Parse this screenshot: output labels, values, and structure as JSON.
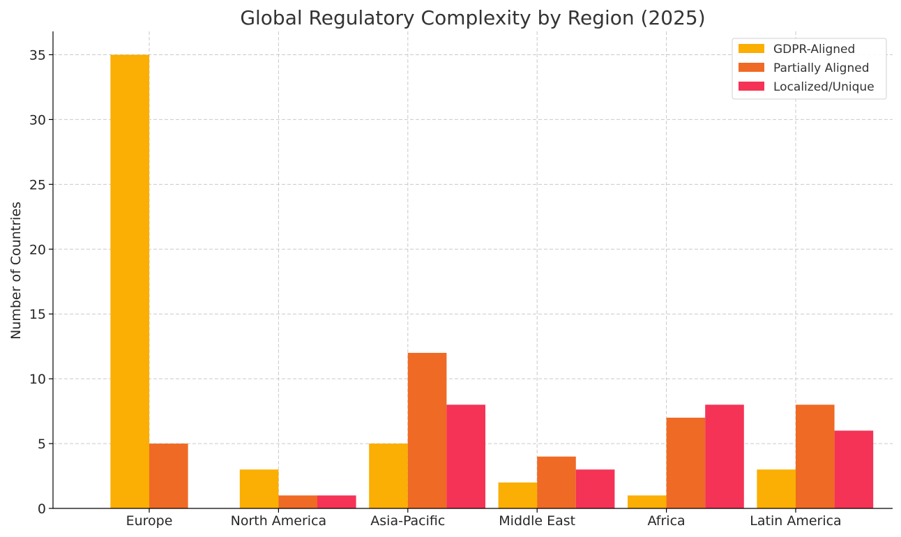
{
  "chart_data": {
    "type": "bar",
    "title": "Global Regulatory Complexity by Region (2025)",
    "xlabel": "",
    "ylabel": "Number of Countries",
    "categories": [
      "Europe",
      "North America",
      "Asia-Pacific",
      "Middle East",
      "Africa",
      "Latin America"
    ],
    "series": [
      {
        "name": "GDPR-Aligned",
        "color": "#FBAE03",
        "values": [
          35,
          3,
          5,
          2,
          1,
          3
        ]
      },
      {
        "name": "Partially Aligned",
        "color": "#EF6A24",
        "values": [
          5,
          1,
          12,
          4,
          7,
          8
        ]
      },
      {
        "name": "Localized/Unique",
        "color": "#F43356",
        "values": [
          0,
          1,
          8,
          3,
          8,
          6
        ]
      }
    ],
    "ylim": [
      0,
      36.8
    ],
    "yticks": [
      0,
      5,
      10,
      15,
      20,
      25,
      30,
      35
    ],
    "grid": true,
    "legend_position": "top-right"
  }
}
